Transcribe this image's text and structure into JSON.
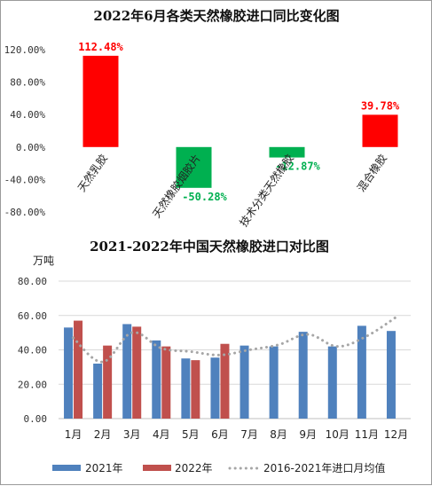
{
  "colors": {
    "positive": "#ff0000",
    "negative": "#00b050",
    "series_2021": "#4f81bd",
    "series_2022": "#c0504d",
    "avg_line": "#a6a6a6",
    "grid": "#d9d9d9"
  },
  "chart_data": [
    {
      "type": "bar",
      "title": "2022年6月各类天然橡胶进口同比变化图",
      "categories": [
        "天然乳胶",
        "天然橡胶烟胶片",
        "技术分类天然橡胶",
        "混合橡胶"
      ],
      "values": [
        112.48,
        -50.28,
        -12.87,
        39.78
      ],
      "data_labels": [
        "112.48%",
        "-50.28%",
        "-12.87%",
        "39.78%"
      ],
      "y_ticks": [
        "120.00%",
        "80.00%",
        "40.00%",
        "0.00%",
        "-40.00%",
        "-80.00%"
      ],
      "ylim": [
        -80,
        120
      ],
      "grid": false
    },
    {
      "type": "bar",
      "title": "2021-2022年中国天然橡胶进口对比图",
      "ylabel": "万吨",
      "categories": [
        "1月",
        "2月",
        "3月",
        "4月",
        "5月",
        "6月",
        "7月",
        "8月",
        "9月",
        "10月",
        "11月",
        "12月"
      ],
      "series": [
        {
          "name": "2021年",
          "type": "bar",
          "values": [
            53,
            32,
            55,
            45.5,
            35,
            35.5,
            42.5,
            42,
            50.5,
            42,
            54,
            51
          ]
        },
        {
          "name": "2022年",
          "type": "bar",
          "values": [
            57,
            42.5,
            53.5,
            42,
            34,
            43.5,
            null,
            null,
            null,
            null,
            null,
            null
          ]
        },
        {
          "name": "2016-2021年进口月均值",
          "type": "line",
          "style": "dotted",
          "values": [
            47,
            33,
            50,
            41,
            39,
            37,
            40,
            43,
            49,
            42,
            48,
            59
          ]
        }
      ],
      "y_ticks": [
        "80.00",
        "60.00",
        "40.00",
        "20.00",
        "0.00"
      ],
      "ylim": [
        0,
        80
      ],
      "grid": true,
      "legend_position": "bottom"
    }
  ]
}
